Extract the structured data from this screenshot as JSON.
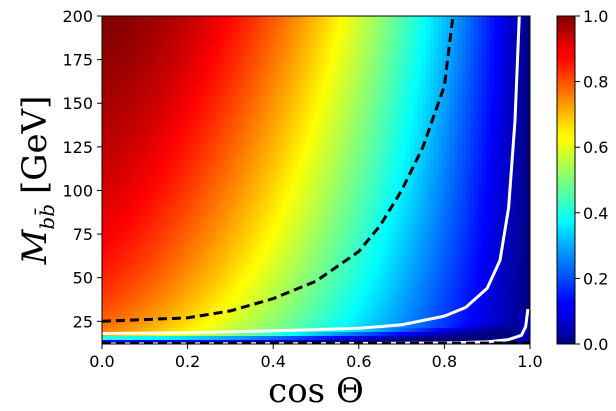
{
  "chart_data": {
    "type": "heatmap",
    "title": "",
    "xlabel": "cos Θ",
    "ylabel_main": "M",
    "ylabel_subscript": "bb̄",
    "ylabel_unit": "[GeV]",
    "xlim": [
      0.0,
      1.0
    ],
    "ylim": [
      12,
      200
    ],
    "x_ticks": [
      "0.0",
      "0.2",
      "0.4",
      "0.6",
      "0.8",
      "1.0"
    ],
    "x_tick_values": [
      0.0,
      0.2,
      0.4,
      0.6,
      0.8,
      1.0
    ],
    "y_ticks": [
      "25",
      "50",
      "75",
      "100",
      "125",
      "150",
      "175",
      "200"
    ],
    "y_tick_values": [
      25,
      50,
      75,
      100,
      125,
      150,
      175,
      200
    ],
    "colorbar": {
      "range": [
        0.0,
        1.0
      ],
      "ticks": [
        "0.0",
        "0.2",
        "0.4",
        "0.6",
        "0.8",
        "1.0"
      ],
      "tick_values": [
        0.0,
        0.2,
        0.4,
        0.6,
        0.8,
        1.0
      ],
      "colormap": "jet"
    },
    "contours": [
      {
        "style": "dashed",
        "color": "#000000",
        "x": [
          0.0,
          0.2,
          0.3,
          0.4,
          0.5,
          0.6,
          0.65,
          0.7,
          0.75,
          0.8,
          0.82
        ],
        "y": [
          25,
          27,
          31,
          38,
          48,
          65,
          80,
          100,
          125,
          160,
          200
        ]
      },
      {
        "style": "solid",
        "color": "#ffffff",
        "x": [
          0.0,
          0.2,
          0.4,
          0.6,
          0.7,
          0.8,
          0.85,
          0.9,
          0.93,
          0.95,
          0.965,
          0.975
        ],
        "y": [
          18,
          18.5,
          19.5,
          21,
          23,
          28,
          33,
          44,
          60,
          90,
          140,
          200
        ]
      },
      {
        "style": "solid",
        "color": "#ffffff",
        "x": [
          0.0,
          0.5,
          0.8,
          0.9,
          0.95,
          0.98,
          0.99,
          0.995
        ],
        "y": [
          12,
          12.2,
          12.6,
          13.2,
          14.5,
          17,
          22,
          32
        ]
      },
      {
        "style": "dashed",
        "color": "#000000",
        "x": [
          0.0,
          0.5,
          0.9,
          1.0
        ],
        "y": [
          12.3,
          12.3,
          12.5,
          12.7
        ]
      }
    ]
  }
}
